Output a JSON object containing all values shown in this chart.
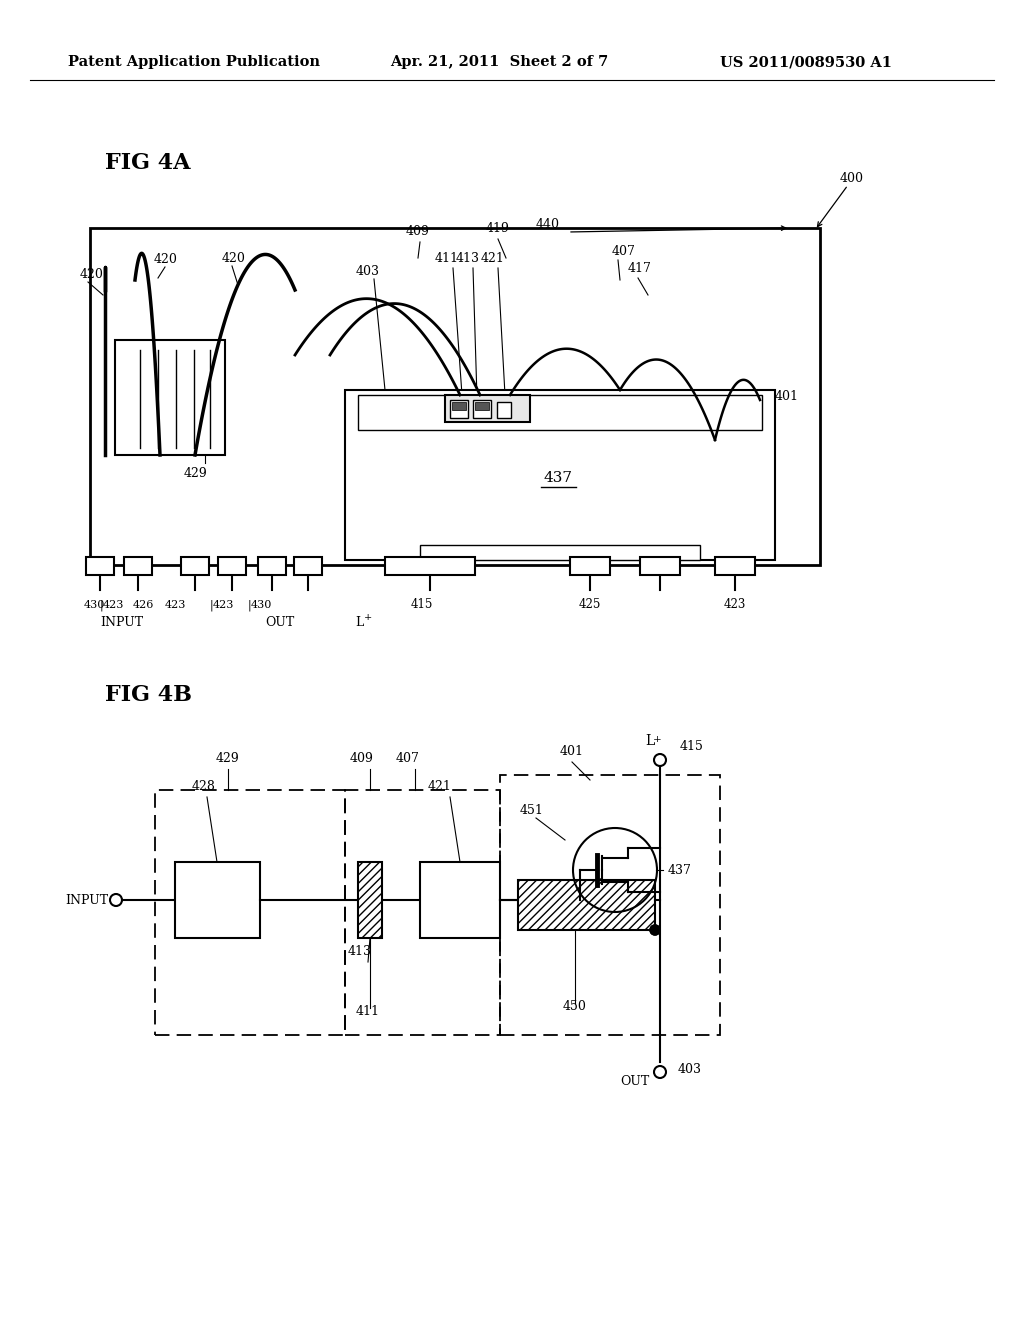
{
  "background_color": "#ffffff",
  "header_left": "Patent Application Publication",
  "header_center": "Apr. 21, 2011  Sheet 2 of 7",
  "header_right": "US 2011/0089530 A1"
}
